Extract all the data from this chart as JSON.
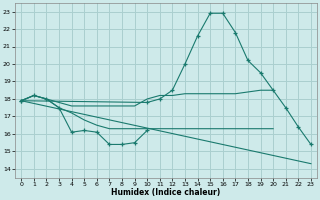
{
  "xlabel": "Humidex (Indice chaleur)",
  "xlim": [
    -0.5,
    23.5
  ],
  "ylim": [
    13.5,
    23.5
  ],
  "yticks": [
    14,
    15,
    16,
    17,
    18,
    19,
    20,
    21,
    22,
    23
  ],
  "xticks": [
    0,
    1,
    2,
    3,
    4,
    5,
    6,
    7,
    8,
    9,
    10,
    11,
    12,
    13,
    14,
    15,
    16,
    17,
    18,
    19,
    20,
    21,
    22,
    23
  ],
  "bg_color": "#ceeaea",
  "grid_color": "#aacfcf",
  "line_color": "#1a7a6e",
  "line1": {
    "x": [
      0,
      1,
      2,
      3,
      4,
      5,
      6,
      7,
      8,
      9,
      10
    ],
    "y": [
      17.9,
      18.2,
      18.0,
      17.5,
      16.1,
      16.2,
      16.1,
      15.4,
      15.4,
      15.5,
      16.2
    ],
    "marker": true
  },
  "line2": {
    "x": [
      0,
      1,
      2,
      3,
      4,
      5,
      6,
      7,
      8,
      9,
      10,
      11,
      12,
      13,
      14,
      15,
      16,
      17,
      18,
      19,
      20
    ],
    "y": [
      17.9,
      18.2,
      18.0,
      17.5,
      17.2,
      16.8,
      16.5,
      16.3,
      16.3,
      16.3,
      16.3,
      16.3,
      16.3,
      16.3,
      16.3,
      16.3,
      16.3,
      16.3,
      16.3,
      16.3,
      16.3
    ],
    "marker": false
  },
  "line3": {
    "x": [
      0,
      1,
      2,
      3,
      4,
      5,
      6,
      7,
      8,
      9,
      10,
      11,
      12,
      13,
      14,
      15,
      16,
      17,
      18,
      19,
      20
    ],
    "y": [
      17.9,
      18.2,
      18.0,
      17.8,
      17.6,
      17.6,
      17.6,
      17.6,
      17.6,
      17.6,
      18.0,
      18.2,
      18.2,
      18.3,
      18.3,
      18.3,
      18.3,
      18.3,
      18.4,
      18.5,
      18.5
    ],
    "marker": false
  },
  "line4": {
    "x": [
      0,
      10,
      11,
      12,
      13,
      14,
      15,
      16,
      17,
      18,
      19,
      20,
      21,
      22,
      23
    ],
    "y": [
      17.9,
      17.8,
      18.0,
      18.5,
      20.0,
      21.6,
      22.9,
      22.9,
      21.8,
      20.2,
      19.5,
      18.5,
      17.5,
      16.4,
      15.4
    ],
    "marker": true
  },
  "line5": {
    "x": [
      0,
      23
    ],
    "y": [
      17.9,
      14.3
    ],
    "marker": false
  }
}
